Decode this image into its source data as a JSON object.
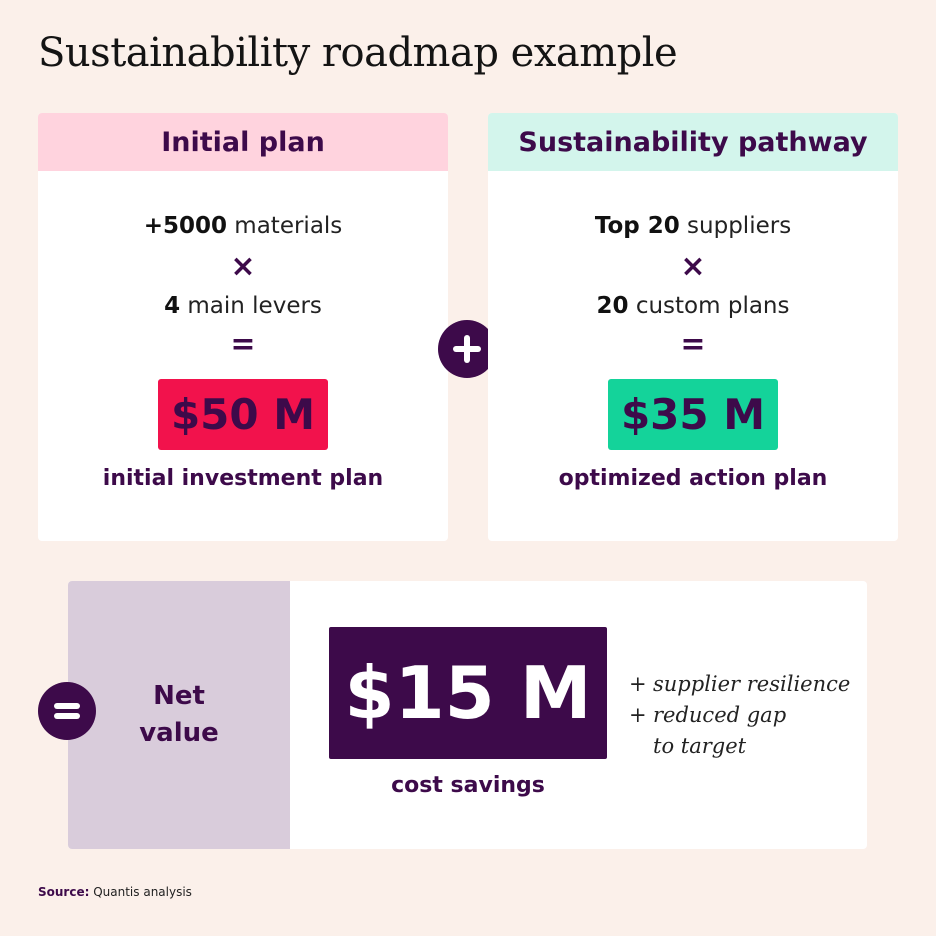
{
  "title": "Sustainability roadmap example",
  "initial_plan": {
    "header": "Initial plan",
    "line1_strong": "+5000",
    "line1_text": " materials",
    "operator1": "×",
    "line2_strong": "4",
    "line2_text": " main levers",
    "operator2": "=",
    "amount": "$50 M",
    "caption": "initial investment plan",
    "accent": "#f2124c"
  },
  "sustainability_pathway": {
    "header": "Sustainability pathway",
    "line1_strong": "Top 20",
    "line1_text": " suppliers",
    "operator1": "×",
    "line2_strong": "20",
    "line2_text": " custom plans",
    "operator2": "=",
    "amount": "$35 M",
    "caption": "optimized action plan",
    "accent": "#14d39a"
  },
  "plus_symbol": "+",
  "equals_symbol": "=",
  "net_value": {
    "label_line1": "Net",
    "label_line2": "value",
    "amount": "$15 M",
    "caption": "cost savings",
    "benefits": [
      {
        "bullet": "+",
        "text": "supplier resilience"
      },
      {
        "bullet": "+",
        "text": "reduced gap"
      },
      {
        "bullet": "",
        "text": "to target"
      }
    ]
  },
  "source": {
    "label": "Source:",
    "text": " Quantis analysis"
  },
  "colors": {
    "background": "#fbf0ea",
    "brand_purple": "#3d0a4a",
    "pink_header": "#ffd3de",
    "mint_header": "#d3f5ec",
    "lavender_panel": "#d9ccdb"
  }
}
